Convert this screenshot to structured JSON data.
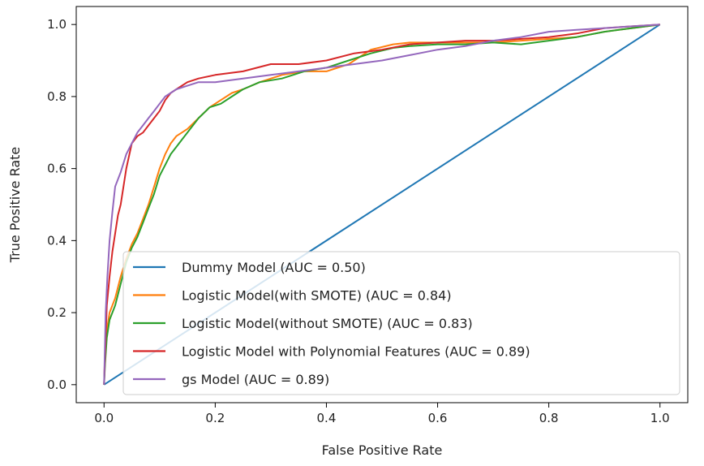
{
  "chart_data": {
    "type": "line",
    "xlabel": "False Positive Rate",
    "ylabel": "True Positive Rate",
    "xlim": [
      -0.05,
      1.05
    ],
    "ylim": [
      -0.05,
      1.05
    ],
    "x_ticks": [
      0.0,
      0.2,
      0.4,
      0.6,
      0.8,
      1.0
    ],
    "x_tick_labels": [
      "0.0",
      "0.2",
      "0.4",
      "0.6",
      "0.8",
      "1.0"
    ],
    "y_ticks": [
      0.0,
      0.2,
      0.4,
      0.6,
      0.8,
      1.0
    ],
    "y_tick_labels": [
      "0.0",
      "0.2",
      "0.4",
      "0.6",
      "0.8",
      "1.0"
    ],
    "grid": false,
    "legend_position": "lower-right",
    "series": [
      {
        "name": "Dummy Model (AUC = 0.50)",
        "color": "#1f77b4",
        "x": [
          0.0,
          1.0
        ],
        "y": [
          0.0,
          1.0
        ]
      },
      {
        "name": "Logistic Model(with SMOTE) (AUC = 0.84)",
        "color": "#ff7f0e",
        "x": [
          0.0,
          0.002,
          0.005,
          0.01,
          0.02,
          0.03,
          0.04,
          0.05,
          0.06,
          0.07,
          0.08,
          0.09,
          0.1,
          0.11,
          0.12,
          0.13,
          0.14,
          0.15,
          0.17,
          0.19,
          0.21,
          0.23,
          0.25,
          0.28,
          0.32,
          0.36,
          0.4,
          0.44,
          0.48,
          0.52,
          0.55,
          0.6,
          0.65,
          0.7,
          0.75,
          0.8,
          0.85,
          0.9,
          0.95,
          1.0
        ],
        "y": [
          0.0,
          0.1,
          0.15,
          0.2,
          0.24,
          0.3,
          0.35,
          0.39,
          0.42,
          0.46,
          0.5,
          0.55,
          0.6,
          0.64,
          0.67,
          0.69,
          0.7,
          0.71,
          0.74,
          0.77,
          0.79,
          0.81,
          0.82,
          0.84,
          0.86,
          0.87,
          0.87,
          0.89,
          0.93,
          0.945,
          0.95,
          0.95,
          0.95,
          0.95,
          0.955,
          0.96,
          0.965,
          0.98,
          0.99,
          1.0
        ]
      },
      {
        "name": "Logistic Model(without SMOTE) (AUC = 0.83)",
        "color": "#2ca02c",
        "x": [
          0.0,
          0.002,
          0.005,
          0.01,
          0.02,
          0.03,
          0.04,
          0.05,
          0.06,
          0.07,
          0.08,
          0.09,
          0.1,
          0.11,
          0.12,
          0.13,
          0.14,
          0.15,
          0.17,
          0.19,
          0.21,
          0.23,
          0.25,
          0.28,
          0.32,
          0.36,
          0.4,
          0.44,
          0.48,
          0.52,
          0.55,
          0.6,
          0.65,
          0.7,
          0.75,
          0.8,
          0.85,
          0.9,
          0.95,
          1.0
        ],
        "y": [
          0.0,
          0.06,
          0.13,
          0.18,
          0.22,
          0.28,
          0.34,
          0.38,
          0.41,
          0.45,
          0.49,
          0.53,
          0.58,
          0.61,
          0.64,
          0.66,
          0.68,
          0.7,
          0.74,
          0.77,
          0.78,
          0.8,
          0.82,
          0.84,
          0.85,
          0.87,
          0.88,
          0.9,
          0.92,
          0.935,
          0.94,
          0.945,
          0.945,
          0.95,
          0.945,
          0.955,
          0.965,
          0.98,
          0.99,
          1.0
        ]
      },
      {
        "name": "Logistic Model with Polynomial Features (AUC = 0.89)",
        "color": "#d62728",
        "x": [
          0.0,
          0.005,
          0.01,
          0.015,
          0.02,
          0.025,
          0.03,
          0.04,
          0.05,
          0.06,
          0.07,
          0.08,
          0.09,
          0.1,
          0.11,
          0.12,
          0.13,
          0.14,
          0.15,
          0.17,
          0.2,
          0.25,
          0.3,
          0.35,
          0.4,
          0.45,
          0.5,
          0.55,
          0.6,
          0.65,
          0.7,
          0.75,
          0.8,
          0.85,
          0.9,
          0.95,
          1.0
        ],
        "y": [
          0.0,
          0.22,
          0.3,
          0.37,
          0.42,
          0.47,
          0.5,
          0.6,
          0.67,
          0.69,
          0.7,
          0.72,
          0.74,
          0.76,
          0.79,
          0.81,
          0.82,
          0.83,
          0.84,
          0.85,
          0.86,
          0.87,
          0.89,
          0.89,
          0.9,
          0.92,
          0.93,
          0.945,
          0.95,
          0.955,
          0.955,
          0.96,
          0.965,
          0.975,
          0.99,
          0.995,
          1.0
        ]
      },
      {
        "name": "gs Model (AUC = 0.89)",
        "color": "#9467bd",
        "x": [
          0.0,
          0.003,
          0.006,
          0.01,
          0.015,
          0.02,
          0.03,
          0.04,
          0.05,
          0.06,
          0.07,
          0.08,
          0.09,
          0.1,
          0.11,
          0.12,
          0.13,
          0.15,
          0.17,
          0.2,
          0.25,
          0.3,
          0.35,
          0.4,
          0.45,
          0.5,
          0.55,
          0.6,
          0.65,
          0.7,
          0.75,
          0.8,
          0.85,
          0.9,
          0.95,
          1.0
        ],
        "y": [
          0.0,
          0.2,
          0.3,
          0.4,
          0.48,
          0.55,
          0.59,
          0.64,
          0.67,
          0.7,
          0.72,
          0.74,
          0.76,
          0.78,
          0.8,
          0.81,
          0.82,
          0.83,
          0.84,
          0.84,
          0.85,
          0.86,
          0.87,
          0.88,
          0.89,
          0.9,
          0.915,
          0.93,
          0.94,
          0.955,
          0.965,
          0.98,
          0.985,
          0.99,
          0.995,
          1.0
        ]
      }
    ]
  }
}
